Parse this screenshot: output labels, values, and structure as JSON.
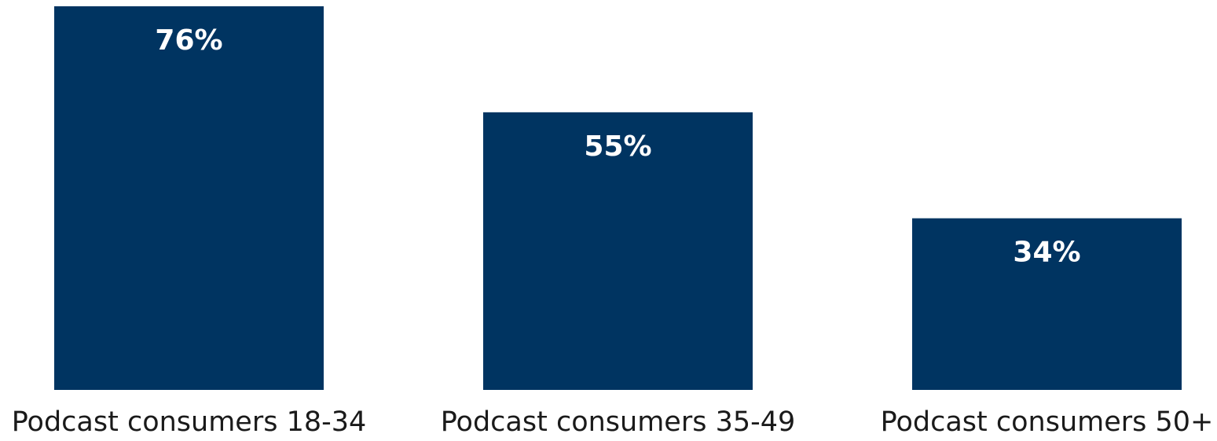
{
  "chart_data": {
    "type": "bar",
    "title": "",
    "xlabel": "",
    "ylabel": "",
    "categories": [
      "Podcast consumers 18-34",
      "Podcast consumers 35-49",
      "Podcast consumers 50+"
    ],
    "values": [
      76,
      55,
      34
    ],
    "value_labels": [
      "76%",
      "55%",
      "34%"
    ],
    "unit": "%",
    "ylim": [
      0,
      76
    ],
    "grid": false,
    "legend": "none",
    "colors": {
      "bar": "#003461",
      "bar_label": "#ffffff",
      "category_label": "#1a1a1a"
    }
  }
}
